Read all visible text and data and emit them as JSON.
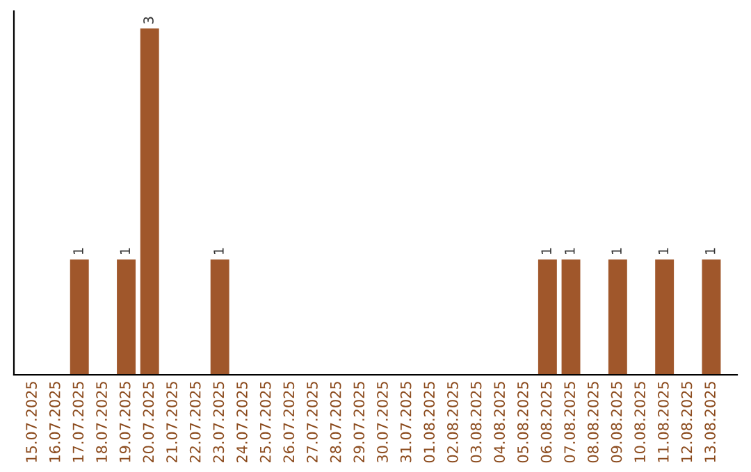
{
  "chart_data": {
    "type": "bar",
    "categories": [
      "15.07.2025",
      "16.07.2025",
      "17.07.2025",
      "18.07.2025",
      "19.07.2025",
      "20.07.2025",
      "21.07.2025",
      "22.07.2025",
      "23.07.2025",
      "24.07.2025",
      "25.07.2025",
      "26.07.2025",
      "27.07.2025",
      "28.07.2025",
      "29.07.2025",
      "30.07.2025",
      "31.07.2025",
      "01.08.2025",
      "02.08.2025",
      "03.08.2025",
      "04.08.2025",
      "05.08.2025",
      "06.08.2025",
      "07.08.2025",
      "08.08.2025",
      "09.08.2025",
      "10.08.2025",
      "11.08.2025",
      "12.08.2025",
      "13.08.2025"
    ],
    "values": [
      0,
      0,
      1,
      0,
      1,
      3,
      0,
      0,
      1,
      0,
      0,
      0,
      0,
      0,
      0,
      0,
      0,
      0,
      0,
      0,
      0,
      0,
      1,
      1,
      0,
      1,
      0,
      1,
      0,
      1
    ],
    "value_labels": [
      null,
      null,
      "1",
      null,
      "1",
      "3",
      null,
      null,
      "1",
      null,
      null,
      null,
      null,
      null,
      null,
      null,
      null,
      null,
      null,
      null,
      null,
      null,
      "1",
      "1",
      null,
      "1",
      null,
      "1",
      null,
      "1"
    ],
    "color": "#a0572b",
    "grid": false,
    "legend": false
  }
}
